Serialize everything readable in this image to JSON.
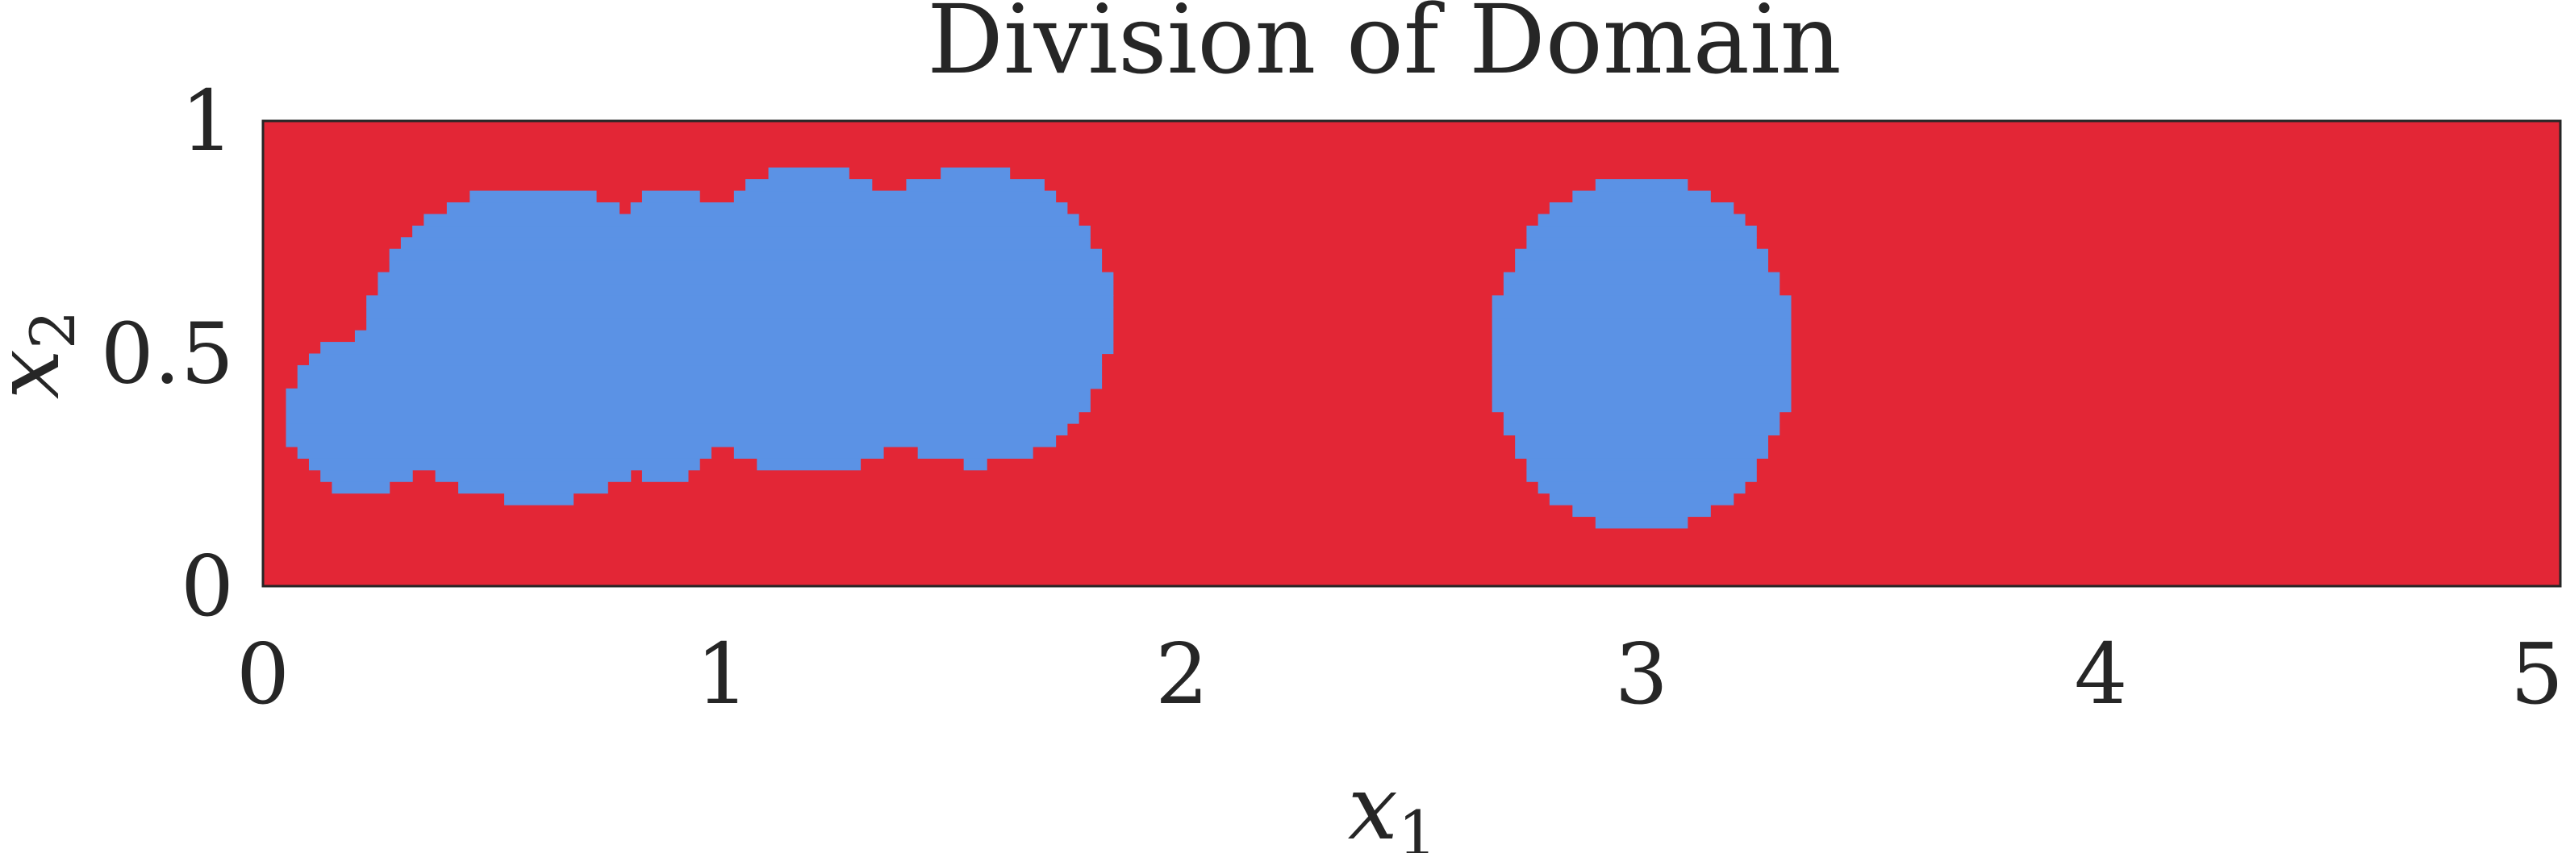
{
  "chart_data": {
    "type": "heatmap",
    "title": "Division of Domain",
    "xlabel": "x",
    "xlabel_subscript": "1",
    "ylabel": "x",
    "ylabel_subscript": "2",
    "xlim": [
      0,
      5
    ],
    "ylim": [
      0,
      1
    ],
    "xticks": [
      0,
      1,
      2,
      3,
      4,
      5
    ],
    "xtick_labels": [
      "0",
      "1",
      "2",
      "3",
      "4",
      "5"
    ],
    "yticks": [
      0,
      0.5,
      1
    ],
    "ytick_labels": [
      "0",
      "0.5",
      "1"
    ],
    "grid": false,
    "legend": "none",
    "colors": {
      "background_region": "#e32636",
      "subdomain_region": "#5b92e5",
      "axis_frame": "#262626"
    },
    "subdomain_blobs": [
      {
        "cx": 0.22,
        "cy": 0.37,
        "rx": 0.17,
        "ry": 0.17
      },
      {
        "cx": 0.59,
        "cy": 0.52,
        "rx": 0.37,
        "ry": 0.34
      },
      {
        "cx": 0.88,
        "cy": 0.54,
        "rx": 0.16,
        "ry": 0.32
      },
      {
        "cx": 1.19,
        "cy": 0.57,
        "rx": 0.3,
        "ry": 0.33
      },
      {
        "cx": 1.55,
        "cy": 0.58,
        "rx": 0.3,
        "ry": 0.32
      },
      {
        "cx": 3.0,
        "cy": 0.5,
        "rx": 0.33,
        "ry": 0.38
      }
    ]
  }
}
